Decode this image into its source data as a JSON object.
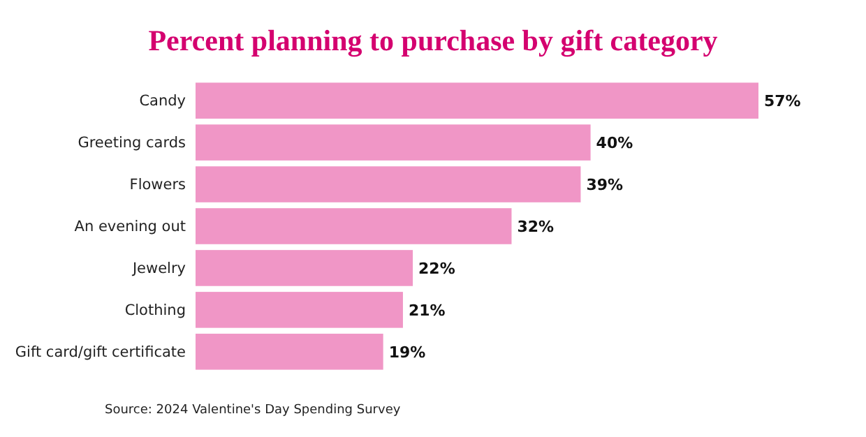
{
  "chart_data": {
    "type": "bar",
    "orientation": "horizontal",
    "title": "Percent planning to purchase by gift category",
    "categories": [
      "Candy",
      "Greeting cards",
      "Flowers",
      "An evening out",
      "Jewelry",
      "Clothing",
      "Gift card/gift certificate"
    ],
    "values": [
      57,
      40,
      39,
      32,
      22,
      21,
      19
    ],
    "value_labels": [
      "57%",
      "40%",
      "39%",
      "32%",
      "22%",
      "21%",
      "19%"
    ],
    "color": "#f096c6",
    "annotations": [
      "Source: 2024 Valentine's Day Spending Survey"
    ]
  }
}
